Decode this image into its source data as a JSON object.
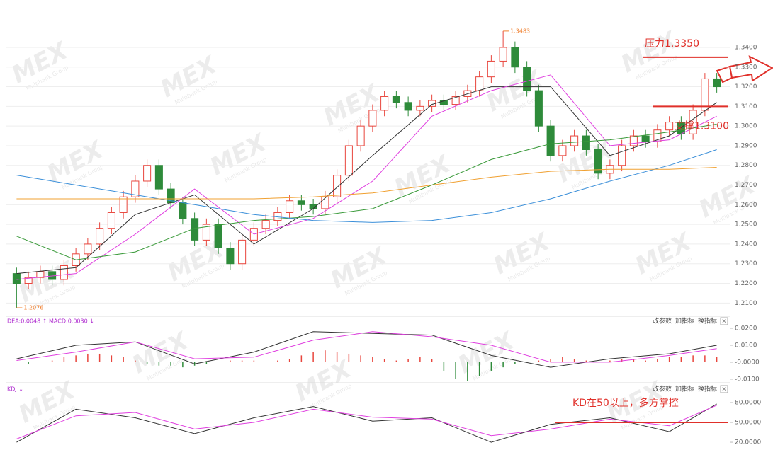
{
  "chart_data": [
    {
      "type": "candlestick",
      "open": [
        1.225,
        1.22,
        1.223,
        1.226,
        1.222,
        1.229,
        1.235,
        1.24,
        1.248,
        1.256,
        1.264,
        1.272,
        1.28,
        1.268,
        1.261,
        1.253,
        1.242,
        1.25,
        1.238,
        1.23,
        1.242,
        1.248,
        1.252,
        1.256,
        1.262,
        1.26,
        1.258,
        1.264,
        1.275,
        1.29,
        1.3,
        1.308,
        1.315,
        1.312,
        1.308,
        1.31,
        1.313,
        1.311,
        1.315,
        1.318,
        1.325,
        1.333,
        1.34,
        1.33,
        1.318,
        1.3,
        1.285,
        1.29,
        1.295,
        1.288,
        1.276,
        1.28,
        1.29,
        1.295,
        1.292,
        1.298,
        1.302,
        1.296,
        1.308,
        1.324
      ],
      "high": [
        1.228,
        1.226,
        1.229,
        1.229,
        1.232,
        1.238,
        1.243,
        1.251,
        1.259,
        1.267,
        1.275,
        1.283,
        1.283,
        1.271,
        1.264,
        1.256,
        1.253,
        1.253,
        1.241,
        1.245,
        1.251,
        1.255,
        1.259,
        1.265,
        1.265,
        1.263,
        1.267,
        1.278,
        1.293,
        1.303,
        1.311,
        1.318,
        1.318,
        1.315,
        1.313,
        1.316,
        1.316,
        1.318,
        1.321,
        1.328,
        1.336,
        1.3483,
        1.343,
        1.333,
        1.321,
        1.303,
        1.293,
        1.298,
        1.298,
        1.291,
        1.283,
        1.293,
        1.298,
        1.298,
        1.301,
        1.305,
        1.305,
        1.311,
        1.327,
        1.327
      ],
      "low": [
        1.2076,
        1.217,
        1.22,
        1.219,
        1.219,
        1.226,
        1.232,
        1.237,
        1.245,
        1.253,
        1.261,
        1.269,
        1.265,
        1.258,
        1.25,
        1.239,
        1.239,
        1.235,
        1.227,
        1.227,
        1.239,
        1.245,
        1.249,
        1.253,
        1.257,
        1.255,
        1.255,
        1.261,
        1.272,
        1.287,
        1.297,
        1.305,
        1.309,
        1.305,
        1.305,
        1.307,
        1.308,
        1.308,
        1.312,
        1.315,
        1.322,
        1.33,
        1.327,
        1.315,
        1.297,
        1.282,
        1.282,
        1.287,
        1.285,
        1.273,
        1.273,
        1.277,
        1.287,
        1.289,
        1.289,
        1.295,
        1.293,
        1.293,
        1.305,
        1.317
      ],
      "close": [
        1.22,
        1.223,
        1.226,
        1.222,
        1.229,
        1.235,
        1.24,
        1.248,
        1.256,
        1.264,
        1.272,
        1.28,
        1.268,
        1.261,
        1.253,
        1.242,
        1.25,
        1.238,
        1.23,
        1.242,
        1.248,
        1.252,
        1.256,
        1.262,
        1.26,
        1.258,
        1.264,
        1.275,
        1.29,
        1.3,
        1.308,
        1.315,
        1.312,
        1.308,
        1.31,
        1.313,
        1.311,
        1.315,
        1.318,
        1.325,
        1.333,
        1.34,
        1.33,
        1.318,
        1.3,
        1.285,
        1.29,
        1.295,
        1.288,
        1.276,
        1.28,
        1.29,
        1.295,
        1.292,
        1.298,
        1.302,
        1.296,
        1.308,
        1.324,
        1.32
      ],
      "up_color": "#e8453c",
      "down_color": "#2e8b3a",
      "lines": [
        {
          "color": "#333333",
          "x": [
            0,
            5,
            10,
            15,
            20,
            25,
            30,
            35,
            40,
            45,
            50,
            55,
            59
          ],
          "values": [
            1.225,
            1.228,
            1.255,
            1.265,
            1.24,
            1.258,
            1.285,
            1.311,
            1.32,
            1.32,
            1.285,
            1.295,
            1.312
          ]
        },
        {
          "color": "#e040e0",
          "x": [
            0,
            5,
            10,
            15,
            20,
            25,
            30,
            35,
            40,
            45,
            50,
            55,
            59
          ],
          "values": [
            1.222,
            1.225,
            1.245,
            1.268,
            1.245,
            1.253,
            1.272,
            1.305,
            1.318,
            1.326,
            1.29,
            1.293,
            1.305
          ]
        },
        {
          "color": "#3a9a3a",
          "x": [
            0,
            5,
            10,
            15,
            20,
            25,
            30,
            35,
            40,
            45,
            50,
            55,
            59
          ],
          "values": [
            1.244,
            1.232,
            1.236,
            1.248,
            1.252,
            1.254,
            1.258,
            1.27,
            1.283,
            1.291,
            1.293,
            1.297,
            1.301
          ]
        },
        {
          "color": "#3b8fd9",
          "x": [
            0,
            5,
            10,
            15,
            20,
            25,
            30,
            35,
            40,
            45,
            50,
            55,
            59
          ],
          "values": [
            1.275,
            1.27,
            1.265,
            1.26,
            1.255,
            1.252,
            1.251,
            1.252,
            1.256,
            1.263,
            1.272,
            1.28,
            1.288
          ]
        },
        {
          "color": "#f0a030",
          "x": [
            0,
            5,
            10,
            15,
            20,
            25,
            30,
            35,
            40,
            45,
            50,
            55,
            59
          ],
          "values": [
            1.263,
            1.263,
            1.263,
            1.263,
            1.263,
            1.264,
            1.266,
            1.27,
            1.274,
            1.277,
            1.278,
            1.278,
            1.279
          ]
        }
      ],
      "ylim": [
        1.204,
        1.3497
      ],
      "yticks": [
        {
          "value": 1.34,
          "label": "1.3400"
        },
        {
          "value": 1.33,
          "label": "1.3300"
        },
        {
          "value": 1.32,
          "label": "1.3200"
        },
        {
          "value": 1.31,
          "label": "1.3100"
        },
        {
          "value": 1.3,
          "label": "1.3000"
        },
        {
          "value": 1.29,
          "label": "1.2900"
        },
        {
          "value": 1.28,
          "label": "1.2800"
        },
        {
          "value": 1.27,
          "label": "1.2700"
        },
        {
          "value": 1.26,
          "label": "1.2600"
        },
        {
          "value": 1.25,
          "label": "1.2500"
        },
        {
          "value": 1.24,
          "label": "1.2400"
        },
        {
          "value": 1.23,
          "label": "1.2300"
        },
        {
          "value": 1.22,
          "label": "1.2200"
        },
        {
          "value": 1.21,
          "label": "1.2100"
        }
      ],
      "grid": true,
      "max_label": "1.3483",
      "min_label": "1.2076",
      "annotations": [
        {
          "text": "压力1.3350",
          "value": 1.335
        },
        {
          "text": "支撑1.3100",
          "value": 1.31
        }
      ],
      "watermark": "MEX",
      "watermark_sub": "Multibank Group"
    },
    {
      "type": "macd",
      "header": "DEA:0.0048 ↑ MACD:0.0030 ↓",
      "buttons": [
        "改参数",
        "加指标",
        "换指标"
      ],
      "close": "×",
      "values": [
        0,
        -0.001,
        0,
        0.001,
        0.003,
        0.004,
        0.005,
        0.005,
        0.004,
        0.003,
        0.001,
        -0.001,
        -0.002,
        -0.002,
        -0.003,
        -0.002,
        -0.001,
        0,
        0.001,
        0.001,
        0.001,
        0,
        0.001,
        0.002,
        0.004,
        0.006,
        0.007,
        0.006,
        0.005,
        0.004,
        0.003,
        0.002,
        0.001,
        0.002,
        0.003,
        0.002,
        -0.005,
        -0.01,
        -0.011,
        -0.008,
        -0.005,
        -0.003,
        -0.001,
        0,
        0.001,
        0.002,
        0.003,
        0.002,
        0.001,
        0,
        0.001,
        0.002,
        0.002,
        0.001,
        0.002,
        0.003,
        0.003,
        0.004,
        0.004,
        0.003
      ],
      "up_color": "#e8453c",
      "down_color": "#2e8b3a",
      "lines": [
        {
          "color": "#333333",
          "x": [
            0,
            5,
            10,
            15,
            20,
            25,
            30,
            35,
            40,
            45,
            50,
            55,
            59
          ],
          "values": [
            0.002,
            0.01,
            0.012,
            -0.001,
            0.006,
            0.018,
            0.017,
            0.016,
            0.004,
            -0.003,
            0.002,
            0.005,
            0.01
          ]
        },
        {
          "color": "#e040e0",
          "x": [
            0,
            5,
            10,
            15,
            20,
            25,
            30,
            35,
            40,
            45,
            50,
            55,
            59
          ],
          "values": [
            0.001,
            0.006,
            0.012,
            0.002,
            0.003,
            0.013,
            0.018,
            0.015,
            0.01,
            0,
            0,
            0.004,
            0.008
          ]
        }
      ],
      "ylim": [
        -0.0117,
        0.025
      ],
      "yticks": [
        {
          "value": 0.02,
          "label": "0.0200"
        },
        {
          "value": 0.01,
          "label": "0.0100"
        },
        {
          "value": 0,
          "label": "-0.0000"
        },
        {
          "value": -0.01,
          "label": "-0.0100"
        }
      ]
    },
    {
      "type": "line",
      "header": "KDJ ↓",
      "buttons": [
        "改参数",
        "加指标",
        "换指标"
      ],
      "close": "×",
      "lines": [
        {
          "color": "#333333",
          "x": [
            0,
            5,
            10,
            15,
            20,
            25,
            30,
            35,
            40,
            45,
            50,
            55,
            59
          ],
          "values": [
            20,
            70,
            57,
            33,
            57,
            74,
            52,
            57,
            20,
            47,
            57,
            36,
            78
          ]
        },
        {
          "color": "#e040e0",
          "x": [
            0,
            5,
            10,
            15,
            20,
            25,
            30,
            35,
            40,
            45,
            50,
            55,
            59
          ],
          "values": [
            25,
            60,
            65,
            40,
            50,
            70,
            58,
            55,
            30,
            40,
            55,
            45,
            76
          ]
        }
      ],
      "ylim": [
        4,
        102.5
      ],
      "yticks": [
        {
          "value": 80,
          "label": "80.0000"
        },
        {
          "value": 50,
          "label": "50.0000"
        },
        {
          "value": 20,
          "label": "20.0000"
        }
      ],
      "annotations": [
        {
          "text": "KD在50以上，多方掌控",
          "value": 50
        }
      ]
    }
  ]
}
